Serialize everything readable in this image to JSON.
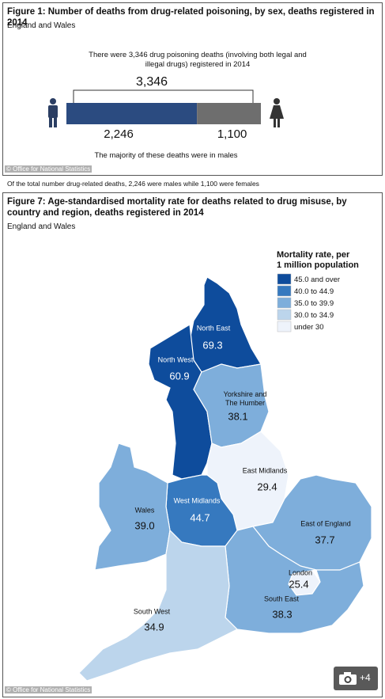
{
  "figure1": {
    "title": "Figure 1: Number of deaths from drug-related poisoning, by sex, deaths registered in 2014",
    "subtitle": "England and Wales",
    "note": "There were 3,346 drug poisoning deaths (involving both legal and illegal drugs) registered in 2014",
    "total": {
      "value": 3346,
      "label": "3,346"
    },
    "values": [
      2246,
      1100
    ],
    "value_labels": [
      "2,246",
      "1,100"
    ],
    "colors": [
      "#2b4b80",
      "#6e6e6e"
    ],
    "footer": "The majority of these deaths were in males",
    "source": "© Office for National Statistics"
  },
  "caption": "Of the total number drug-related deaths, 2,246 were males while 1,100 were females",
  "figure2": {
    "title": "Figure 7: Age-standardised mortality rate for deaths related to drug misuse, by country and region, deaths registered in 2014",
    "subtitle": "England and Wales",
    "legend": {
      "title": "Mortality rate, per\n1 million population",
      "items": [
        {
          "label": "45.0 and over",
          "color": "#0e4c9c"
        },
        {
          "label": "40.0 to 44.9",
          "color": "#3679bf"
        },
        {
          "label": "35.0 to 39.9",
          "color": "#7eaedb"
        },
        {
          "label": "30.0 to 34.9",
          "color": "#bcd5ec"
        },
        {
          "label": "under 30",
          "color": "#eef3fb"
        }
      ]
    },
    "regions": [
      {
        "name": "North East",
        "value": 69.3,
        "color": "#0e4c9c"
      },
      {
        "name": "North West",
        "value": 60.9,
        "color": "#0e4c9c"
      },
      {
        "name": "Yorkshire and\nThe Humber",
        "value": 38.1,
        "color": "#7eaedb"
      },
      {
        "name": "East Midlands",
        "value": 29.4,
        "color": "#eef3fb"
      },
      {
        "name": "West Midlands",
        "value": 44.7,
        "color": "#3679bf"
      },
      {
        "name": "Wales",
        "value": 39.0,
        "value_label": "39.0",
        "color": "#7eaedb"
      },
      {
        "name": "East of England",
        "value": 37.7,
        "color": "#7eaedb"
      },
      {
        "name": "London",
        "value": 25.4,
        "color": "#eef3fb"
      },
      {
        "name": "South East",
        "value": 38.3,
        "color": "#7eaedb"
      },
      {
        "name": "South West",
        "value": 34.9,
        "color": "#bcd5ec"
      }
    ],
    "source": "© Office for National Statistics",
    "badge": "+4"
  }
}
